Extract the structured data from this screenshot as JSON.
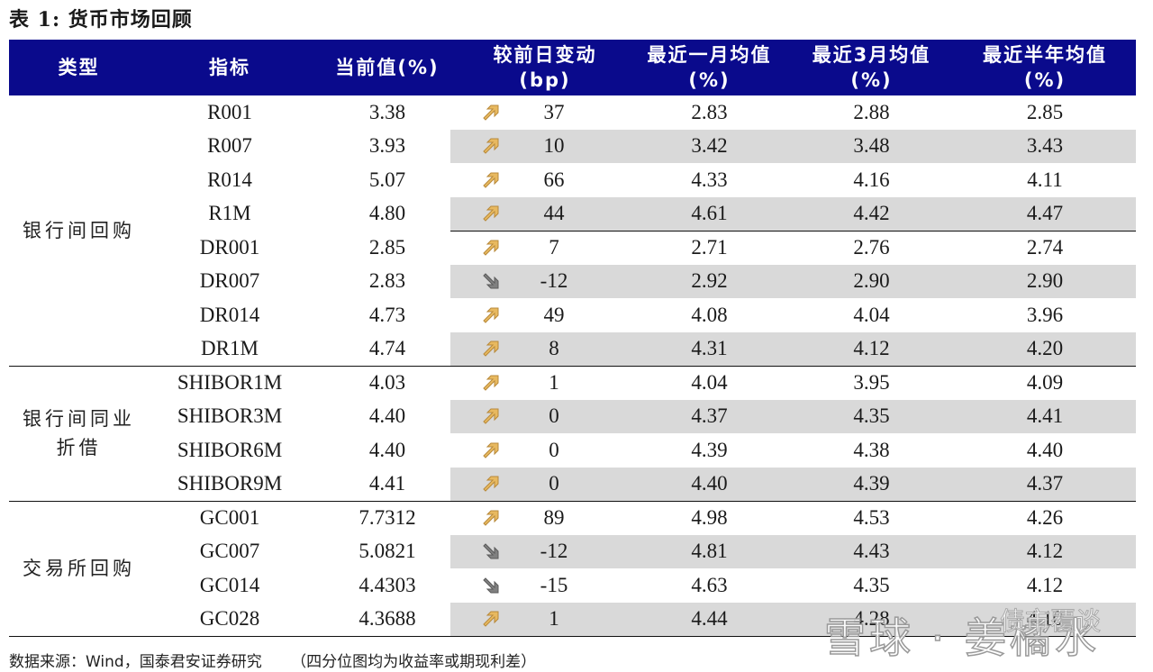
{
  "title": "表 1:  货币市场回顾",
  "colors": {
    "header_bg": "#0a0a8c",
    "header_text": "#ffffff",
    "shade": "#d9d9d9",
    "arrow_up": "#e8b960",
    "arrow_down": "#808080"
  },
  "header": {
    "type": "类型",
    "indicator": "指标",
    "current": "当前值(%)",
    "change_line1": "较前日变动",
    "change_line2": "(bp)",
    "m1_line1": "最近一月均值",
    "m1_line2": "(%)",
    "m3_line1": "最近3月均值",
    "m3_line2": "(%)",
    "m6_line1": "最近半年均值",
    "m6_line2": "(%)"
  },
  "groups": [
    {
      "label_line1": "银行间回购",
      "label_line2": ""
    },
    {
      "label_line1": "银行间同业",
      "label_line2": "折借"
    },
    {
      "label_line1": "交易所回购",
      "label_line2": ""
    }
  ],
  "rows": [
    {
      "indicator": "R001",
      "current": "3.38",
      "direction": "up",
      "change": "37",
      "m1": "2.83",
      "m3": "2.88",
      "m6": "2.85"
    },
    {
      "indicator": "R007",
      "current": "3.93",
      "direction": "up",
      "change": "10",
      "m1": "3.42",
      "m3": "3.48",
      "m6": "3.43"
    },
    {
      "indicator": "R014",
      "current": "5.07",
      "direction": "up",
      "change": "66",
      "m1": "4.33",
      "m3": "4.16",
      "m6": "4.11"
    },
    {
      "indicator": "R1M",
      "current": "4.80",
      "direction": "up",
      "change": "44",
      "m1": "4.61",
      "m3": "4.42",
      "m6": "4.47"
    },
    {
      "indicator": "DR001",
      "current": "2.85",
      "direction": "up",
      "change": "7",
      "m1": "2.71",
      "m3": "2.76",
      "m6": "2.74"
    },
    {
      "indicator": "DR007",
      "current": "2.83",
      "direction": "down",
      "change": "-12",
      "m1": "2.92",
      "m3": "2.90",
      "m6": "2.90"
    },
    {
      "indicator": "DR014",
      "current": "4.73",
      "direction": "up",
      "change": "49",
      "m1": "4.08",
      "m3": "4.04",
      "m6": "3.96"
    },
    {
      "indicator": "DR1M",
      "current": "4.74",
      "direction": "up",
      "change": "8",
      "m1": "4.31",
      "m3": "4.12",
      "m6": "4.20"
    },
    {
      "indicator": "SHIBOR1M",
      "current": "4.03",
      "direction": "up",
      "change": "1",
      "m1": "4.04",
      "m3": "3.95",
      "m6": "4.09"
    },
    {
      "indicator": "SHIBOR3M",
      "current": "4.40",
      "direction": "up",
      "change": "0",
      "m1": "4.37",
      "m3": "4.35",
      "m6": "4.41"
    },
    {
      "indicator": "SHIBOR6M",
      "current": "4.40",
      "direction": "up",
      "change": "0",
      "m1": "4.39",
      "m3": "4.38",
      "m6": "4.40"
    },
    {
      "indicator": "SHIBOR9M",
      "current": "4.41",
      "direction": "up",
      "change": "0",
      "m1": "4.40",
      "m3": "4.39",
      "m6": "4.37"
    },
    {
      "indicator": "GC001",
      "current": "7.7312",
      "direction": "up",
      "change": "89",
      "m1": "4.98",
      "m3": "4.53",
      "m6": "4.26"
    },
    {
      "indicator": "GC007",
      "current": "5.0821",
      "direction": "down",
      "change": "-12",
      "m1": "4.81",
      "m3": "4.43",
      "m6": "4.12"
    },
    {
      "indicator": "GC014",
      "current": "4.4303",
      "direction": "down",
      "change": "-15",
      "m1": "4.63",
      "m3": "4.35",
      "m6": "4.12"
    },
    {
      "indicator": "GC028",
      "current": "4.3688",
      "direction": "up",
      "change": "1",
      "m1": "4.44",
      "m3": "4.28",
      "m6": "4.10"
    }
  ],
  "footer": "数据来源：Wind，国泰君安证券研究      （四分位图均为收益率或期现利差）",
  "watermark": {
    "main": "雪球 · 姜橘水",
    "sub": "债市覆谈"
  }
}
